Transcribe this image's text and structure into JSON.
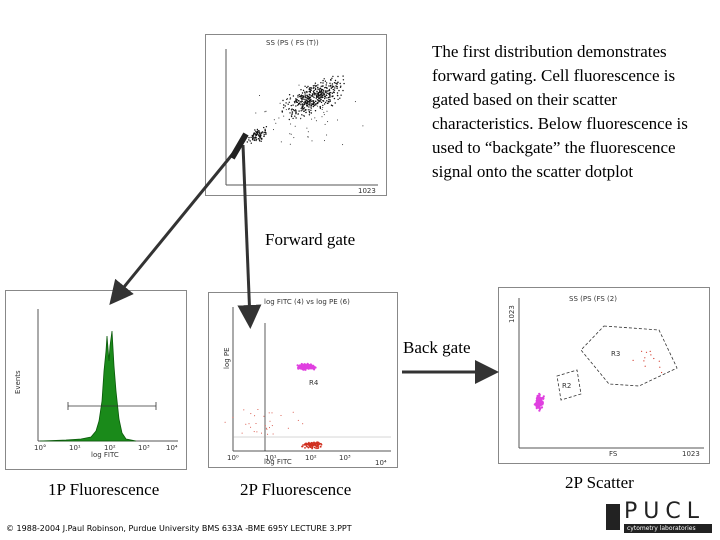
{
  "description": "The first distribution demonstrates forward gating. Cell fluorescence is gated based on their scatter characteristics. Below fluorescence is used to “backgate” the fluorescence signal onto the scatter dotplot",
  "labels": {
    "forward_gate": "Forward gate",
    "back_gate": "Back gate",
    "one_p_fluorescence": "1P Fluorescence",
    "two_p_fluorescence": "2P Fluorescence",
    "two_p_scatter": "2P Scatter"
  },
  "plot_text": {
    "scatter_title": "SS (PS ( FS (T))",
    "scatter_xmax": "1023",
    "hist_ticks": [
      "10°",
      "10¹",
      "10²",
      "10³",
      "10⁴"
    ],
    "hist_xlabel": "log FITC",
    "hist_ylabel": "Events",
    "dot_title": "log FITC (4) vs log PE (6)",
    "dot_ylabel": "log PE",
    "dot_xlabel": "log FITC",
    "dot_region": "R4",
    "dot_xticks": [
      "10⁰",
      "10¹",
      "10²",
      "10³",
      "10⁴"
    ],
    "bg_title": "SS (PS (FS (2)",
    "bg_ymax": "1023",
    "bg_xlabel": "FS",
    "bg_xmax": "1023",
    "bg_region3": "R3",
    "bg_region2": "R2"
  },
  "footer": {
    "credit": "© 1988-2004 J.Paul Robinson, Purdue University BMS 633A -BME 695Y LECTURE 3.PPT",
    "logo_text": "PUCL",
    "logo_subtext": "cytometry laboratories"
  },
  "colors": {
    "histogram_fill": "#1a8a1a",
    "magenta_cluster": "#e040e0",
    "red_cluster": "#d03020",
    "arrow": "#333333"
  }
}
